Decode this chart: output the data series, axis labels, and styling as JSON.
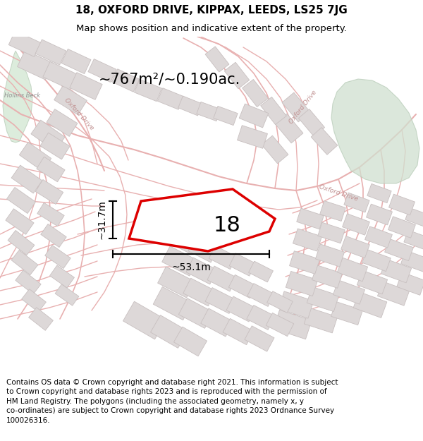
{
  "title_line1": "18, OXFORD DRIVE, KIPPAX, LEEDS, LS25 7JG",
  "title_line2": "Map shows position and indicative extent of the property.",
  "area_text": "~767m²/~0.190ac.",
  "number_label": "18",
  "dim_width": "~53.1m",
  "dim_height": "~31.7m",
  "footer_wrapped": "Contains OS data © Crown copyright and database right 2021. This information is subject\nto Crown copyright and database rights 2023 and is reproduced with the permission of\nHM Land Registry. The polygons (including the associated geometry, namely x, y\nco-ordinates) are subject to Crown copyright and database rights 2023 Ordnance Survey\n100026316.",
  "map_bg": "#f8f5f5",
  "road_color": "#e8b0b0",
  "road_lw": 1.2,
  "building_color": "#ddd8d8",
  "building_edge": "#c8c0c0",
  "property_fill": "#ffffff",
  "property_edge": "#dd0000",
  "green_color": "#d0e0d0",
  "green_edge": "#b8ccb8",
  "hollins_beck_color": "#d4e8d4",
  "hollins_beck_edge": "#b8ccb8",
  "label_road_color": "#c09090",
  "title_fontsize": 11,
  "subtitle_fontsize": 9.5,
  "footer_fontsize": 7.5,
  "area_fontsize": 15,
  "dim_fontsize": 10,
  "num_fontsize": 22
}
